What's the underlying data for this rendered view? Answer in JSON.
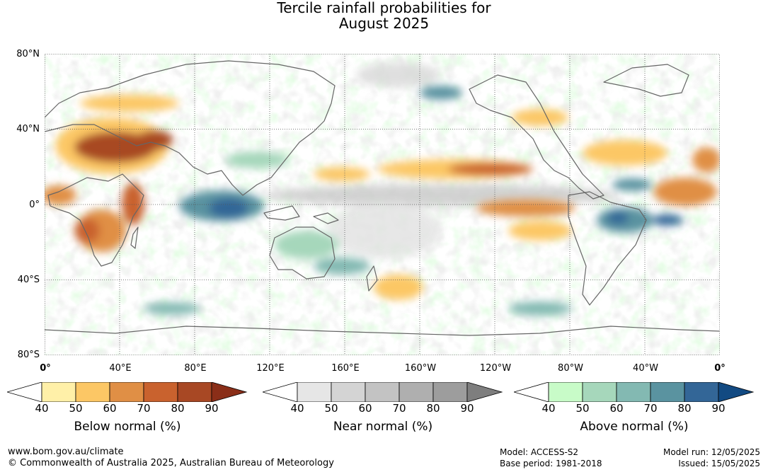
{
  "title_line1": "Tercile rainfall probabilities for",
  "title_line2": "August 2025",
  "axes": {
    "lat_labels": [
      "80°N",
      "40°N",
      "0°",
      "40°S",
      "80°S"
    ],
    "lon_labels": [
      "0°",
      "40°E",
      "80°E",
      "120°E",
      "160°E",
      "160°W",
      "120°W",
      "80°W",
      "40°W",
      "0°"
    ]
  },
  "colorbars": [
    {
      "title": "Below normal (%)",
      "ticks": [
        "40",
        "50",
        "60",
        "70",
        "80",
        "90"
      ],
      "colors": [
        "#ffffff",
        "#fff0a8",
        "#fcc765",
        "#e08f45",
        "#c9622e",
        "#a84824",
        "#8a2e18"
      ]
    },
    {
      "title": "Near normal (%)",
      "ticks": [
        "40",
        "50",
        "60",
        "70",
        "80",
        "90"
      ],
      "colors": [
        "#ffffff",
        "#e6e6e6",
        "#d4d4d4",
        "#c3c3c3",
        "#afafaf",
        "#9d9d9d",
        "#7e7e7e"
      ]
    },
    {
      "title": "Above normal (%)",
      "ticks": [
        "40",
        "50",
        "60",
        "70",
        "80",
        "90"
      ],
      "colors": [
        "#ffffff",
        "#c8fbc8",
        "#a6d7bb",
        "#83b9b2",
        "#5a93a0",
        "#336697",
        "#124a82"
      ]
    }
  ],
  "footer": {
    "website": "www.bom.gov.au/climate",
    "copyright": "© Commonwealth of Australia 2025, Australian Bureau of Meteorology",
    "model": "Model: ACCESS-S2",
    "base_period": "Base period: 1981-2018",
    "model_run": "Model run: 12/05/2025",
    "issued": "Issued: 15/05/2025"
  }
}
